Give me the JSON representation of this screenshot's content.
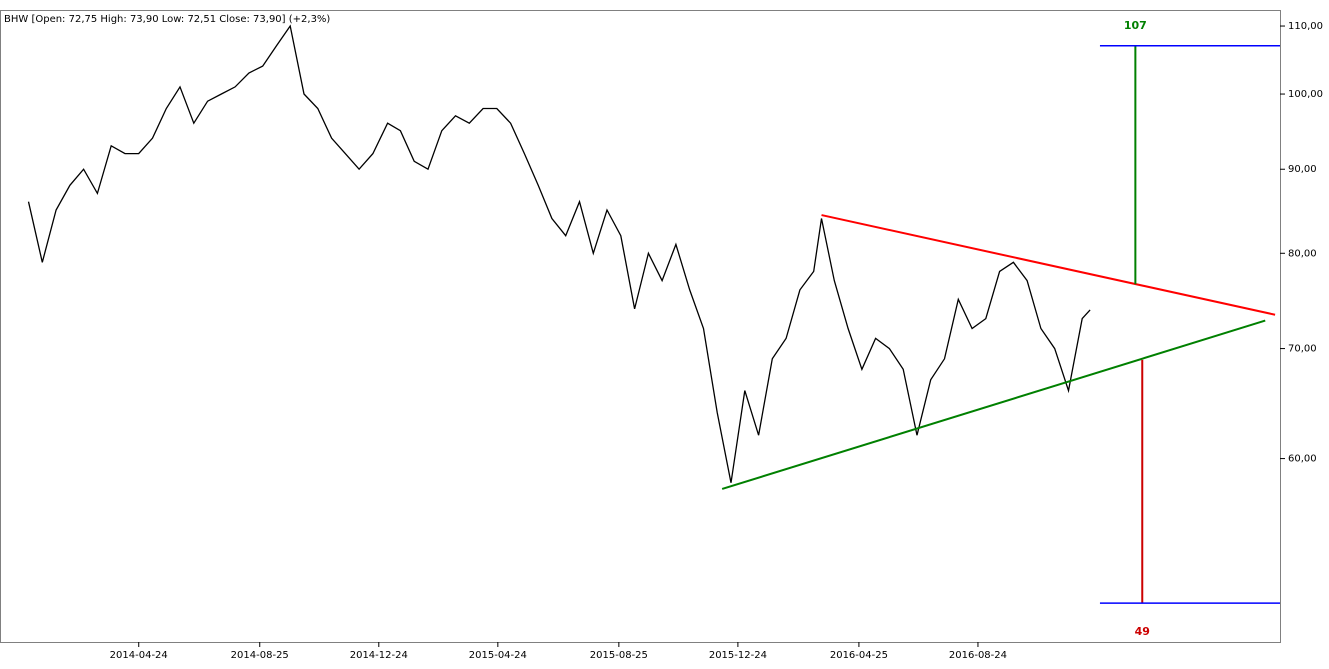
{
  "chart_data": {
    "type": "line",
    "title": "BHW [Open: 72,75  High: 73,90  Low: 72,51  Close: 73,90]  (+2,3%)",
    "log_scale": true,
    "xlim": [
      "2013-12-04",
      "2017-06-27"
    ],
    "xticks": [
      "2014-04-24",
      "2014-08-25",
      "2014-12-24",
      "2015-04-24",
      "2015-08-25",
      "2015-12-24",
      "2016-04-25",
      "2016-08-24"
    ],
    "ylim": [
      46.4,
      112.5
    ],
    "yticks": [
      {
        "value": 60,
        "label": "60,00"
      },
      {
        "value": 70,
        "label": "70,00"
      },
      {
        "value": 80,
        "label": "80,00"
      },
      {
        "value": 90,
        "label": "90,00"
      },
      {
        "value": 100,
        "label": "100,00"
      },
      {
        "value": 110,
        "label": "110,00"
      }
    ],
    "x": [
      "2014-01-02",
      "2014-01-16",
      "2014-01-30",
      "2014-02-13",
      "2014-02-27",
      "2014-03-13",
      "2014-03-27",
      "2014-04-10",
      "2014-04-24",
      "2014-05-08",
      "2014-05-22",
      "2014-06-05",
      "2014-06-19",
      "2014-07-03",
      "2014-07-17",
      "2014-07-31",
      "2014-08-14",
      "2014-08-28",
      "2014-09-11",
      "2014-09-25",
      "2014-10-09",
      "2014-10-23",
      "2014-11-06",
      "2014-11-20",
      "2014-12-04",
      "2014-12-18",
      "2015-01-02",
      "2015-01-15",
      "2015-01-29",
      "2015-02-12",
      "2015-02-26",
      "2015-03-12",
      "2015-03-26",
      "2015-04-09",
      "2015-04-23",
      "2015-05-07",
      "2015-05-21",
      "2015-06-04",
      "2015-06-18",
      "2015-07-02",
      "2015-07-16",
      "2015-07-30",
      "2015-08-13",
      "2015-08-27",
      "2015-09-10",
      "2015-09-24",
      "2015-10-08",
      "2015-10-22",
      "2015-11-05",
      "2015-11-19",
      "2015-12-03",
      "2015-12-17",
      "2015-12-31",
      "2016-01-14",
      "2016-01-28",
      "2016-02-11",
      "2016-02-25",
      "2016-03-10",
      "2016-03-18",
      "2016-03-31",
      "2016-04-14",
      "2016-04-28",
      "2016-05-12",
      "2016-05-26",
      "2016-06-09",
      "2016-06-23",
      "2016-07-07",
      "2016-07-21",
      "2016-08-04",
      "2016-08-18",
      "2016-09-01",
      "2016-09-15",
      "2016-09-29",
      "2016-10-13",
      "2016-10-27",
      "2016-11-10",
      "2016-11-24",
      "2016-12-08",
      "2016-12-16"
    ],
    "series": [
      {
        "name": "BHW",
        "color": "#000000",
        "values": [
          86,
          79,
          85,
          88,
          90,
          87,
          93,
          92,
          92,
          94,
          98,
          101,
          96,
          99,
          100,
          101,
          103,
          104,
          107,
          110,
          100,
          98,
          94,
          92,
          90,
          92,
          96,
          95,
          91,
          90,
          95,
          97,
          96,
          98,
          98,
          96,
          92,
          88,
          84,
          82,
          86,
          80,
          85,
          82,
          74,
          80,
          77,
          81,
          76,
          72,
          64,
          58,
          66,
          62,
          69,
          71,
          76,
          78,
          84,
          77,
          72,
          68,
          71,
          70,
          68,
          62,
          67,
          69,
          75,
          72,
          73,
          78,
          79,
          77,
          72,
          70,
          66,
          73,
          73.9
        ]
      }
    ],
    "trendlines": [
      {
        "color": "#ff0000",
        "x": [
          "2016-03-18",
          "2017-06-22"
        ],
        "y": [
          84.4,
          73.4
        ]
      },
      {
        "color": "#008000",
        "x": [
          "2015-12-08",
          "2017-06-12"
        ],
        "y": [
          57.5,
          72.8
        ]
      }
    ],
    "projections": [
      {
        "x": "2017-01-31",
        "from": 76.6,
        "to": 107,
        "color": "#008000",
        "level_color": "#0000ff",
        "level_start": "2016-12-26"
      },
      {
        "x": "2017-02-07",
        "from": 68.9,
        "to": 49,
        "color": "#cc0000",
        "level_color": "#0000ff",
        "level_start": "2016-12-26"
      }
    ]
  }
}
